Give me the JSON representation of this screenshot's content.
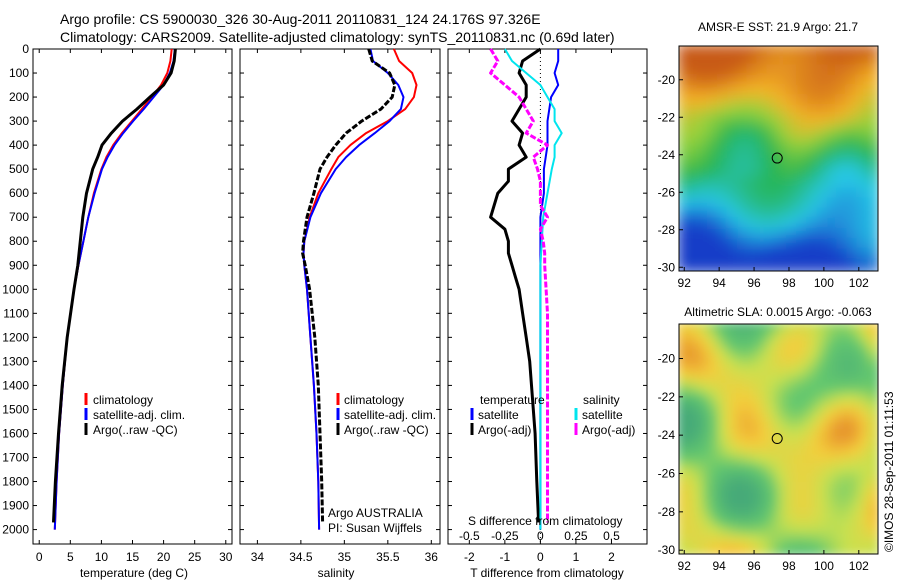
{
  "title": {
    "line1": "Argo profile: CS 5900030_326 30-Aug-2011 20110831_124 24.176S 97.326E",
    "line2": "Climatology: CARS2009. Satellite-adjusted climatology: synTS_20110831.nc (0.69d later)"
  },
  "stamp": "©IMOS 28-Sep-2011 01:11:53",
  "colors": {
    "climatology": "#ff0000",
    "satellite": "#0000ff",
    "argo": "#000000",
    "sal_satellite": "#00e5ee",
    "sal_argo": "#ff00ff"
  },
  "chart_data": [
    {
      "id": "temperature",
      "type": "line",
      "xlabel": "temperature (deg C)",
      "ylabel": "",
      "xlim": [
        -1,
        31
      ],
      "xticks": [
        "0",
        "5",
        "10",
        "15",
        "20",
        "25",
        "30"
      ],
      "ylim": [
        2060,
        0
      ],
      "yticks": [
        "0",
        "100",
        "200",
        "300",
        "400",
        "500",
        "600",
        "700",
        "800",
        "900",
        "1000",
        "1100",
        "1200",
        "1300",
        "1400",
        "1500",
        "1600",
        "1700",
        "1800",
        "1900",
        "2000"
      ],
      "legend": [
        "climatology",
        "satellite-adj. clim.",
        "Argo(..raw -QC)"
      ],
      "legend_placement": "lower-right",
      "series": [
        {
          "name": "climatology",
          "depth": [
            0,
            50,
            100,
            150,
            200,
            250,
            300,
            350,
            400,
            450,
            500,
            600,
            700,
            800,
            900,
            1000,
            1200,
            1400,
            1600,
            1800,
            2000
          ],
          "values": [
            21.3,
            21.1,
            20.6,
            19.6,
            18.1,
            16.5,
            14.9,
            13.3,
            11.9,
            10.8,
            10.0,
            8.8,
            7.9,
            7.1,
            6.3,
            5.6,
            4.5,
            3.8,
            3.2,
            2.8,
            2.5
          ]
        },
        {
          "name": "satellite-adj. clim.",
          "depth": [
            0,
            50,
            100,
            150,
            200,
            250,
            300,
            350,
            400,
            450,
            500,
            600,
            700,
            800,
            900,
            1000,
            1200,
            1400,
            1600,
            1800,
            2000
          ],
          "values": [
            21.8,
            21.6,
            21.0,
            20.0,
            18.4,
            16.8,
            15.1,
            13.5,
            12.1,
            11.0,
            10.1,
            8.9,
            7.9,
            7.1,
            6.3,
            5.6,
            4.5,
            3.8,
            3.2,
            2.8,
            2.5
          ]
        },
        {
          "name": "Argo(..raw -QC)",
          "depth": [
            0,
            50,
            100,
            150,
            200,
            250,
            300,
            350,
            400,
            450,
            500,
            600,
            700,
            800,
            900,
            1000,
            1200,
            1400,
            1600,
            1800,
            1970
          ],
          "values": [
            21.9,
            21.7,
            21.2,
            20.0,
            17.8,
            15.7,
            13.4,
            11.6,
            10.1,
            9.4,
            8.6,
            7.6,
            7.0,
            6.6,
            6.2,
            5.6,
            4.5,
            3.7,
            3.1,
            2.6,
            2.3
          ]
        }
      ]
    },
    {
      "id": "salinity",
      "type": "line",
      "xlabel": "salinity",
      "ylabel": "",
      "xlim": [
        33.8,
        36.1
      ],
      "xticks": [
        "34",
        "34.5",
        "35",
        "35.5",
        "36"
      ],
      "ylim": [
        2060,
        0
      ],
      "legend": [
        "climatology",
        "satellite-adj. clim.",
        "Argo(..raw -QC)"
      ],
      "legend_placement": "lower-right",
      "annotation": [
        "Argo AUSTRALIA",
        "PI: Susan Wijffels"
      ],
      "series": [
        {
          "name": "climatology",
          "depth": [
            0,
            50,
            100,
            150,
            200,
            250,
            300,
            350,
            400,
            450,
            500,
            600,
            700,
            800,
            850,
            900,
            1000,
            1200,
            1400,
            1600,
            1800,
            2000
          ],
          "values": [
            35.57,
            35.63,
            35.78,
            35.83,
            35.8,
            35.7,
            35.5,
            35.25,
            35.07,
            34.93,
            34.85,
            34.7,
            34.6,
            34.54,
            34.53,
            34.54,
            34.57,
            34.61,
            34.65,
            34.68,
            34.7,
            34.71
          ]
        },
        {
          "name": "satellite-adj. clim.",
          "depth": [
            0,
            50,
            100,
            150,
            200,
            250,
            300,
            350,
            400,
            450,
            500,
            600,
            700,
            800,
            850,
            900,
            1000,
            1200,
            1400,
            1600,
            1800,
            2000
          ],
          "values": [
            35.3,
            35.33,
            35.5,
            35.62,
            35.68,
            35.65,
            35.52,
            35.35,
            35.17,
            35.02,
            34.9,
            34.73,
            34.61,
            34.54,
            34.53,
            34.54,
            34.57,
            34.61,
            34.65,
            34.68,
            34.7,
            34.71
          ]
        },
        {
          "name": "Argo(..raw -QC)",
          "depth": [
            0,
            50,
            100,
            150,
            200,
            250,
            300,
            350,
            400,
            450,
            500,
            600,
            700,
            800,
            850,
            900,
            1000,
            1200,
            1400,
            1600,
            1800,
            1970
          ],
          "values": [
            35.28,
            35.32,
            35.52,
            35.58,
            35.55,
            35.42,
            35.2,
            35.02,
            34.9,
            34.8,
            34.72,
            34.65,
            34.57,
            34.53,
            34.52,
            34.55,
            34.6,
            34.66,
            34.7,
            34.72,
            34.74,
            34.75
          ]
        }
      ]
    },
    {
      "id": "difference",
      "type": "line",
      "xlabel": "T difference from climatology",
      "top_label": "S difference from climatology",
      "xlim": [
        -2.6,
        3.0
      ],
      "xticks": [
        "-2",
        "-1",
        "0",
        "1",
        "2"
      ],
      "sticks": [
        "-0.5",
        "-0.25",
        "0",
        "0.25",
        "0.5"
      ],
      "ylim": [
        2060,
        0
      ],
      "legend_groups": [
        {
          "title": "temperature",
          "items": [
            "satellite",
            "Argo(-adj)"
          ]
        },
        {
          "title": "salinity",
          "items": [
            "satellite",
            "Argo(-adj)"
          ]
        }
      ],
      "series": [
        {
          "name": "temperature satellite",
          "depth": [
            0,
            50,
            100,
            150,
            200,
            300,
            400,
            500,
            600,
            700,
            800,
            900,
            1000,
            1200,
            1400,
            1600,
            1800,
            2000
          ],
          "values": [
            0.5,
            0.5,
            0.4,
            0.5,
            0.3,
            0.2,
            0.2,
            0.1,
            0.1,
            0.0,
            0.0,
            0.0,
            0.0,
            0.0,
            0.0,
            0.0,
            0.0,
            0.0
          ]
        },
        {
          "name": "temperature Argo(-adj)",
          "depth": [
            0,
            50,
            100,
            150,
            200,
            250,
            300,
            350,
            400,
            450,
            500,
            550,
            600,
            650,
            700,
            750,
            800,
            850,
            900,
            950,
            1000,
            1100,
            1200,
            1300,
            1400,
            1500,
            1600,
            1800,
            1970
          ],
          "values": [
            0.0,
            -0.5,
            -0.6,
            -0.4,
            -0.4,
            -0.6,
            -0.8,
            -0.5,
            -0.6,
            -0.4,
            -0.9,
            -0.9,
            -1.2,
            -1.3,
            -1.4,
            -1.0,
            -0.9,
            -0.9,
            -0.8,
            -0.7,
            -0.6,
            -0.5,
            -0.4,
            -0.3,
            -0.25,
            -0.2,
            -0.15,
            -0.1,
            -0.05
          ]
        },
        {
          "name": "salinity satellite",
          "depth": [
            0,
            50,
            100,
            150,
            200,
            250,
            300,
            350,
            400,
            450,
            500,
            600,
            700,
            800,
            900,
            1000,
            1200,
            1400,
            1600,
            1800,
            2000
          ],
          "values": [
            -0.25,
            -0.2,
            -0.1,
            0.0,
            0.05,
            0.1,
            0.1,
            0.15,
            0.1,
            0.1,
            0.08,
            0.05,
            0.02,
            0.01,
            0.0,
            0.0,
            0.0,
            0.0,
            0.0,
            0.0,
            0.0
          ]
        },
        {
          "name": "salinity Argo(-adj)",
          "depth": [
            0,
            50,
            100,
            150,
            200,
            250,
            300,
            350,
            400,
            450,
            500,
            550,
            600,
            650,
            700,
            750,
            800,
            850,
            900,
            1000,
            1100,
            1200,
            1400,
            1600,
            1800,
            1970
          ],
          "values": [
            -0.35,
            -0.3,
            -0.35,
            -0.25,
            -0.15,
            -0.1,
            -0.05,
            -0.1,
            0.05,
            -0.05,
            -0.02,
            0.0,
            0.0,
            0.0,
            0.05,
            0.0,
            0.02,
            0.03,
            0.03,
            0.04,
            0.05,
            0.05,
            0.05,
            0.05,
            0.05,
            0.05
          ]
        }
      ]
    },
    {
      "id": "sst-map",
      "type": "heatmap",
      "title": "AMSR-E SST: 21.9 Argo: 21.7",
      "xticks": [
        "92",
        "94",
        "96",
        "98",
        "100",
        "102"
      ],
      "yticks": [
        "-20",
        "-22",
        "-24",
        "-26",
        "-28",
        "-30"
      ],
      "xlim": [
        91.7,
        103.1
      ],
      "ylim": [
        -30.2,
        -18.2
      ],
      "marker": {
        "lon": 97.326,
        "lat": -24.176
      }
    },
    {
      "id": "sla-map",
      "type": "heatmap",
      "title": "Altimetric SLA: 0.0015 Argo: -0.063",
      "xticks": [
        "92",
        "94",
        "96",
        "98",
        "100",
        "102"
      ],
      "yticks": [
        "-20",
        "-22",
        "-24",
        "-26",
        "-28",
        "-30"
      ],
      "xlim": [
        91.7,
        103.1
      ],
      "ylim": [
        -30.2,
        -18.2
      ],
      "marker": {
        "lon": 97.326,
        "lat": -24.176
      }
    }
  ]
}
